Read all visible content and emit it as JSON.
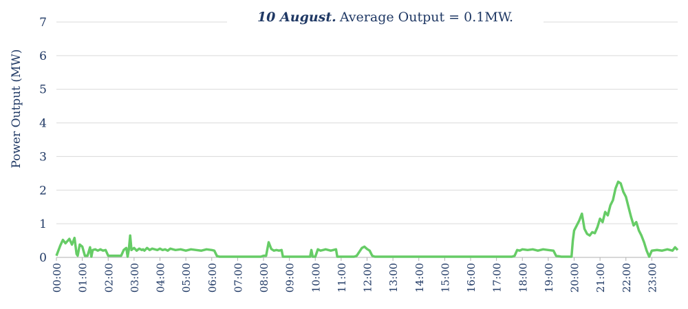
{
  "chart_data": {
    "type": "line",
    "title_bold": "10 August.",
    "title_rest": "Average Output = 0.1MW.",
    "xlabel": "",
    "ylabel": "Power Output (MW)",
    "ylim": [
      0,
      7
    ],
    "yticks": [
      "0",
      "1",
      "2",
      "3",
      "4",
      "5",
      "6",
      "7"
    ],
    "xticks": [
      "00:00",
      "01:00",
      "02:00",
      "03:00",
      "04:00",
      "05:00",
      "06:00",
      "07:00",
      "08:00",
      "09:00",
      "10:00",
      "11:00",
      "12:00",
      "13:00",
      "14:00",
      "15:00",
      "16:00",
      "17:00",
      "18:00",
      "19:00",
      "20:00",
      "21:00",
      "22:00",
      "23:00"
    ],
    "grid": true,
    "color": "#66cc66",
    "series": [
      {
        "x": [
          0,
          0.15,
          0.25,
          0.35,
          0.5,
          0.6,
          0.7,
          0.78,
          0.82,
          0.9,
          1.0,
          1.1,
          1.2,
          1.3,
          1.35,
          1.4,
          1.5,
          1.6,
          1.7,
          1.75,
          1.8,
          1.9,
          2.0,
          2.2,
          2.3,
          2.4,
          2.5,
          2.6,
          2.7,
          2.75,
          2.8,
          2.85,
          2.9,
          3.0,
          3.1,
          3.2,
          3.3,
          3.35,
          3.4,
          3.5,
          3.6,
          3.7,
          3.8,
          3.9,
          4.0,
          4.1,
          4.2,
          4.3,
          4.4,
          4.6,
          4.8,
          5.0,
          5.2,
          5.4,
          5.6,
          5.8,
          6.0,
          6.1,
          6.2,
          6.3,
          6.35,
          7.0,
          7.5,
          7.9,
          8.0,
          8.1,
          8.2,
          8.3,
          8.4,
          8.5,
          8.6,
          8.7,
          8.75,
          9.0,
          9.5,
          9.8,
          9.85,
          9.9,
          10.0,
          10.1,
          10.2,
          10.3,
          10.4,
          10.6,
          10.8,
          10.85,
          11.0,
          11.5,
          11.6,
          11.8,
          11.9,
          12.0,
          12.1,
          12.2,
          12.3,
          12.35,
          13.0,
          14.0,
          15.0,
          16.0,
          17.0,
          17.6,
          17.7,
          17.8,
          17.9,
          18.0,
          18.2,
          18.4,
          18.6,
          18.8,
          19.0,
          19.2,
          19.3,
          19.5,
          19.9,
          19.95,
          20.0,
          20.1,
          20.2,
          20.3,
          20.4,
          20.5,
          20.6,
          20.7,
          20.8,
          20.9,
          21.0,
          21.1,
          21.2,
          21.3,
          21.4,
          21.5,
          21.6,
          21.7,
          21.8,
          21.9,
          22.0,
          22.1,
          22.2,
          22.3,
          22.4,
          22.5,
          22.6,
          22.7,
          22.8,
          22.9,
          23.0,
          23.2,
          23.4,
          23.6,
          23.8,
          23.9,
          24.0
        ],
        "y": [
          0.05,
          0.35,
          0.52,
          0.42,
          0.55,
          0.38,
          0.58,
          0.1,
          0.05,
          0.38,
          0.32,
          0.05,
          0.05,
          0.3,
          0.02,
          0.22,
          0.24,
          0.2,
          0.24,
          0.22,
          0.2,
          0.22,
          0.05,
          0.05,
          0.05,
          0.05,
          0.05,
          0.22,
          0.28,
          0.02,
          0.24,
          0.65,
          0.22,
          0.28,
          0.2,
          0.26,
          0.22,
          0.24,
          0.2,
          0.28,
          0.22,
          0.26,
          0.24,
          0.22,
          0.26,
          0.22,
          0.24,
          0.2,
          0.26,
          0.22,
          0.24,
          0.2,
          0.24,
          0.22,
          0.2,
          0.24,
          0.22,
          0.2,
          0.04,
          0.02,
          0.02,
          0.02,
          0.02,
          0.02,
          0.05,
          0.05,
          0.45,
          0.25,
          0.2,
          0.22,
          0.2,
          0.22,
          0.02,
          0.02,
          0.02,
          0.02,
          0.22,
          0.02,
          0.02,
          0.24,
          0.2,
          0.22,
          0.24,
          0.2,
          0.24,
          0.02,
          0.02,
          0.02,
          0.05,
          0.28,
          0.32,
          0.25,
          0.2,
          0.05,
          0.02,
          0.02,
          0.02,
          0.02,
          0.02,
          0.02,
          0.02,
          0.02,
          0.05,
          0.22,
          0.2,
          0.24,
          0.22,
          0.24,
          0.2,
          0.24,
          0.22,
          0.2,
          0.05,
          0.02,
          0.02,
          0.5,
          0.8,
          0.95,
          1.1,
          1.3,
          0.85,
          0.7,
          0.65,
          0.75,
          0.72,
          0.9,
          1.15,
          1.05,
          1.35,
          1.25,
          1.55,
          1.7,
          2.05,
          2.25,
          2.2,
          1.95,
          1.8,
          1.5,
          1.2,
          0.95,
          1.05,
          0.8,
          0.65,
          0.45,
          0.2,
          0.02,
          0.2,
          0.22,
          0.2,
          0.24,
          0.2,
          0.3,
          0.22
        ]
      }
    ]
  }
}
